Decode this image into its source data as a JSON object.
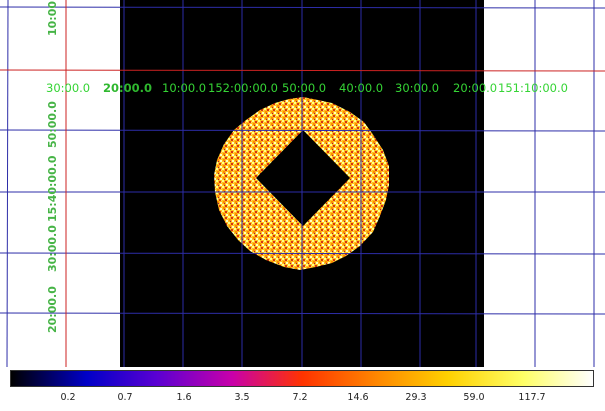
{
  "ra_labels": [
    {
      "text": "30:00.0",
      "bold": false
    },
    {
      "text": "20:00.0",
      "bold": true
    },
    {
      "text": "10:00.0",
      "bold": false
    },
    {
      "text": "152:00:00.0",
      "bold": false
    },
    {
      "text": "50:00.0",
      "bold": false
    },
    {
      "text": "40:00.0",
      "bold": false
    },
    {
      "text": "30:00.0",
      "bold": false
    },
    {
      "text": "20:00.0",
      "bold": false
    },
    {
      "text": "151:10:00.0",
      "bold": false
    }
  ],
  "dec_labels": [
    "10:00.0",
    "50:00.0",
    "15:40:00.0",
    "30:00.0",
    "20:00.0"
  ],
  "colorbar": {
    "colormap": [
      "#000000",
      "#0000c8",
      "#5a00d2",
      "#c800aa",
      "#ff3300",
      "#ff8800",
      "#ffd000",
      "#ffff66",
      "#ffffff"
    ],
    "ticks": [
      "0.2",
      "0.7",
      "1.6",
      "3.5",
      "7.2",
      "14.6",
      "29.3",
      "59.0",
      "117.7"
    ]
  },
  "colors": {
    "grid_blue": "#2d2da8",
    "grid_red": "#cc2222",
    "label_green": "#35d435"
  }
}
